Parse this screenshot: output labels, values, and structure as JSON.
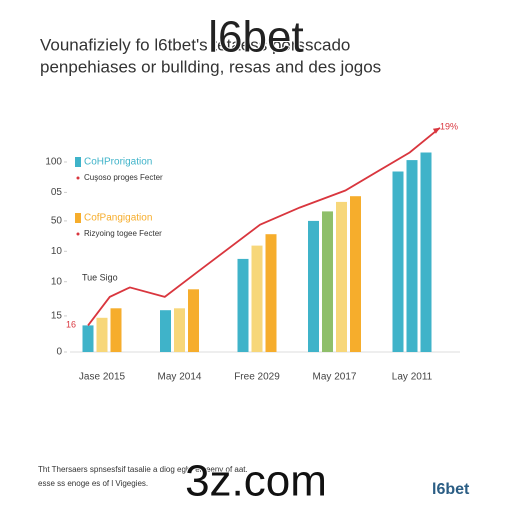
{
  "header": {
    "title_lines": [
      "Vounafiziely fo l6tbet's tetaess porsscado",
      "penpehiases or bullding, resas and des jogos"
    ],
    "watermark": "l6bet"
  },
  "chart_data": {
    "type": "bar",
    "categories": [
      "Jase 2015",
      "May 2014",
      "Free 2029",
      "May 2017",
      "Lay 2011"
    ],
    "series": [
      {
        "name": "CoHProrigation",
        "subtitle": "Cuşoso proges Fecter",
        "color": "#3fb3c9",
        "values": [
          14,
          22,
          49,
          69,
          95
        ]
      },
      {
        "color": "#3fb3c9",
        "values": [
          null,
          null,
          null,
          null,
          101
        ]
      },
      {
        "color": "#8fbf6a",
        "values": [
          null,
          null,
          null,
          74,
          null
        ]
      },
      {
        "color": "#f7d77a",
        "values": [
          18,
          23,
          56,
          79,
          null
        ]
      },
      {
        "name": "CofPangigation",
        "subtitle": "Rizyoing togee Fecter",
        "color": "#f6ad2c",
        "values": [
          23,
          33,
          62,
          82,
          null
        ]
      },
      {
        "color": "#3fb3c9",
        "values": [
          null,
          null,
          null,
          null,
          105
        ]
      }
    ],
    "line": {
      "color": "#d9363e",
      "x": [
        -0.18,
        0.1,
        0.36,
        0.81,
        1.26,
        2.04,
        2.55,
        3.14,
        3.97,
        4.36
      ],
      "values": [
        14,
        29,
        34,
        29,
        43,
        67,
        76,
        85,
        105,
        118
      ]
    },
    "annotations": [
      "16",
      "19%",
      "Tue Sigo"
    ],
    "xlim": [
      -0.5,
      4.5
    ],
    "ylim": [
      0,
      120
    ],
    "yticks": [
      100,
      {
        "value": 84,
        "label": "05"
      },
      {
        "value": 69,
        "label": "50"
      },
      {
        "value": 53,
        "label": "10"
      },
      {
        "value": 37,
        "label": "10"
      },
      {
        "value": 19,
        "label": "15"
      },
      0
    ]
  },
  "footer": {
    "lines": [
      "Tht Thersaers spnsesfsif tasalie a diog eghr eloeeny of aat.",
      "esse ss enoge es of l Vigegies."
    ],
    "watermark": "3z.com",
    "logo": "l6bet"
  }
}
